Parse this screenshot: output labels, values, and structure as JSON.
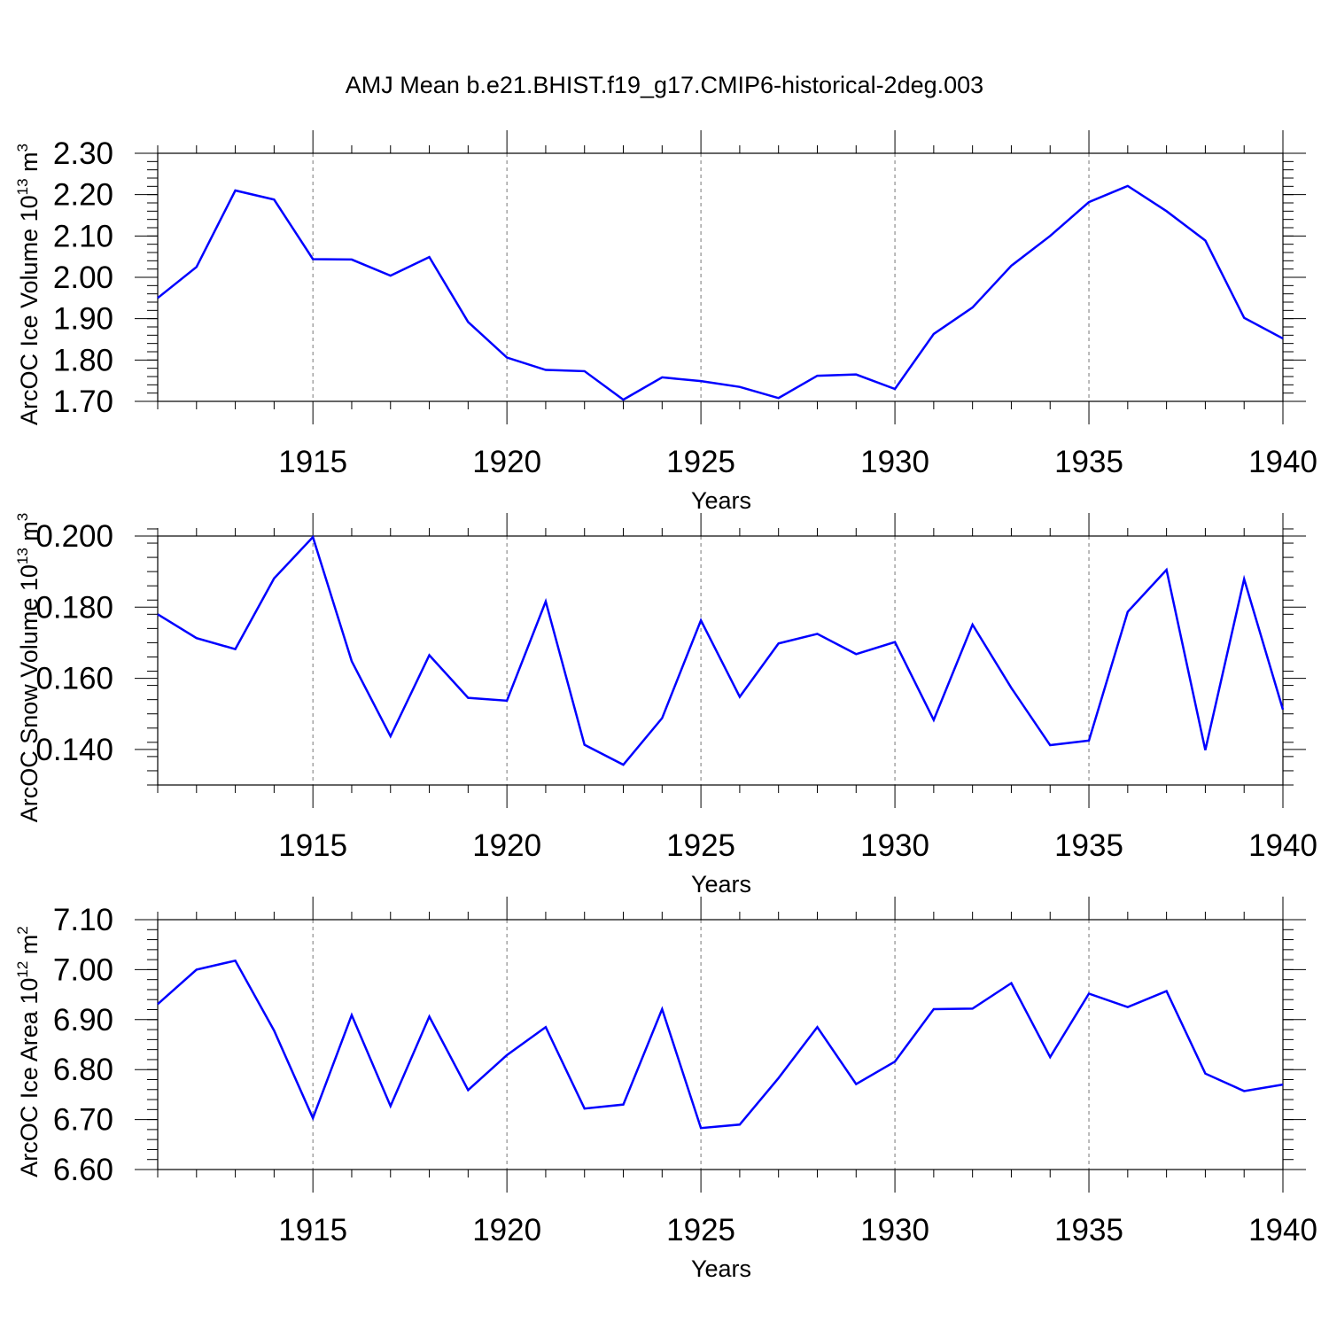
{
  "title": "AMJ Mean b.e21.BHIST.f19_g17.CMIP6-historical-2deg.003",
  "chart_data": [
    {
      "type": "line",
      "ylabel_main": "ArcOC Ice Volume 10",
      "ylabel_exp": "13",
      "ylabel_unit": " m",
      "ylabel_unit_exp": "3",
      "xlabel": "Years",
      "xlim": [
        1911,
        1940
      ],
      "ylim": [
        1.7,
        2.3
      ],
      "xticks": [
        1915,
        1920,
        1925,
        1930,
        1935,
        1940
      ],
      "xtick_labels": [
        "1915",
        "1920",
        "1925",
        "1930",
        "1935",
        "1940"
      ],
      "yticks": [
        1.7,
        1.8,
        1.9,
        2.0,
        2.1,
        2.2,
        2.3
      ],
      "ytick_labels": [
        "1.70",
        "1.80",
        "1.90",
        "2.00",
        "2.10",
        "2.20",
        "2.30"
      ],
      "yminor_step": 0.02,
      "x": [
        1911,
        1912,
        1913,
        1914,
        1915,
        1916,
        1917,
        1918,
        1919,
        1920,
        1921,
        1922,
        1923,
        1924,
        1925,
        1926,
        1927,
        1928,
        1929,
        1930,
        1931,
        1932,
        1933,
        1934,
        1935,
        1936,
        1937,
        1938,
        1939,
        1940
      ],
      "series": [
        {
          "name": "Ice Volume",
          "color": "#0000ff",
          "values": [
            1.95,
            2.025,
            2.21,
            2.188,
            2.044,
            2.043,
            2.004,
            2.049,
            1.892,
            1.806,
            1.776,
            1.773,
            1.704,
            1.758,
            1.749,
            1.735,
            1.708,
            1.762,
            1.765,
            1.73,
            1.863,
            1.927,
            2.028,
            2.1,
            2.182,
            2.221,
            2.16,
            2.089,
            1.902,
            1.852
          ]
        }
      ]
    },
    {
      "type": "line",
      "ylabel_main": "ArcOC Snow Volume 10",
      "ylabel_exp": "13",
      "ylabel_unit": " m",
      "ylabel_unit_exp": "3",
      "xlabel": "Years",
      "xlim": [
        1911,
        1940
      ],
      "ylim": [
        0.13,
        0.2
      ],
      "xticks": [
        1915,
        1920,
        1925,
        1930,
        1935,
        1940
      ],
      "xtick_labels": [
        "1915",
        "1920",
        "1925",
        "1930",
        "1935",
        "1940"
      ],
      "yticks": [
        0.14,
        0.16,
        0.18,
        0.2
      ],
      "ytick_labels": [
        "0.140",
        "0.160",
        "0.180",
        "0.200"
      ],
      "yminor_step": 0.004,
      "x": [
        1911,
        1912,
        1913,
        1914,
        1915,
        1916,
        1917,
        1918,
        1919,
        1920,
        1921,
        1922,
        1923,
        1924,
        1925,
        1926,
        1927,
        1928,
        1929,
        1930,
        1931,
        1932,
        1933,
        1934,
        1935,
        1936,
        1937,
        1938,
        1939,
        1940
      ],
      "series": [
        {
          "name": "Snow Volume",
          "color": "#0000ff",
          "values": [
            0.178,
            0.1713,
            0.1682,
            0.1881,
            0.1997,
            0.1648,
            0.1437,
            0.1665,
            0.1545,
            0.1537,
            0.1816,
            0.1413,
            0.1357,
            0.1488,
            0.1763,
            0.1548,
            0.1698,
            0.1725,
            0.1668,
            0.1702,
            0.1483,
            0.1751,
            0.1573,
            0.1412,
            0.1425,
            0.1787,
            0.1905,
            0.1398,
            0.1879,
            0.1512
          ]
        }
      ]
    },
    {
      "type": "line",
      "ylabel_main": "ArcOC Ice Area 10",
      "ylabel_exp": "12",
      "ylabel_unit": " m",
      "ylabel_unit_exp": "2",
      "xlabel": "Years",
      "xlim": [
        1911,
        1940
      ],
      "ylim": [
        6.6,
        7.1
      ],
      "xticks": [
        1915,
        1920,
        1925,
        1930,
        1935,
        1940
      ],
      "xtick_labels": [
        "1915",
        "1920",
        "1925",
        "1930",
        "1935",
        "1940"
      ],
      "yticks": [
        6.6,
        6.7,
        6.8,
        6.9,
        7.0,
        7.1
      ],
      "ytick_labels": [
        "6.60",
        "6.70",
        "6.80",
        "6.90",
        "7.00",
        "7.10"
      ],
      "yminor_step": 0.02,
      "x": [
        1911,
        1912,
        1913,
        1914,
        1915,
        1916,
        1917,
        1918,
        1919,
        1920,
        1921,
        1922,
        1923,
        1924,
        1925,
        1926,
        1927,
        1928,
        1929,
        1930,
        1931,
        1932,
        1933,
        1934,
        1935,
        1936,
        1937,
        1938,
        1939,
        1940
      ],
      "series": [
        {
          "name": "Ice Area",
          "color": "#0000ff",
          "values": [
            6.931,
            7.0,
            7.018,
            6.878,
            6.703,
            6.909,
            6.727,
            6.906,
            6.759,
            6.829,
            6.885,
            6.722,
            6.73,
            6.921,
            6.683,
            6.69,
            6.783,
            6.885,
            6.771,
            6.816,
            6.921,
            6.922,
            6.973,
            6.825,
            6.952,
            6.925,
            6.957,
            6.792,
            6.757,
            6.77
          ]
        }
      ]
    }
  ]
}
